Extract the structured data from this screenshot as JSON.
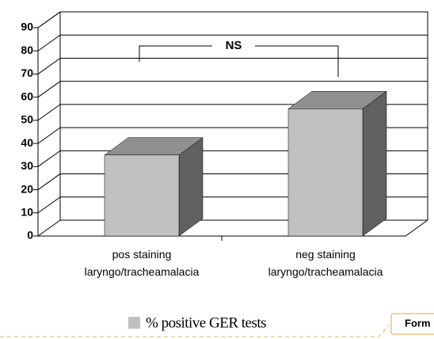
{
  "chart_data": {
    "type": "bar3d",
    "categories": [
      "pos staining\nlaryngo/tracheamalacia",
      "neg staining\nlaryngo/tracheamalacia"
    ],
    "series": [
      {
        "name": "% positive GER tests",
        "color": "#c0c0c0",
        "values": [
          35,
          55
        ]
      }
    ],
    "ylim": [
      0,
      90
    ],
    "yticks": [
      0,
      10,
      20,
      30,
      40,
      50,
      60,
      70,
      80,
      90
    ],
    "annotation": "NS",
    "grid": true
  },
  "footer_label": "Form"
}
